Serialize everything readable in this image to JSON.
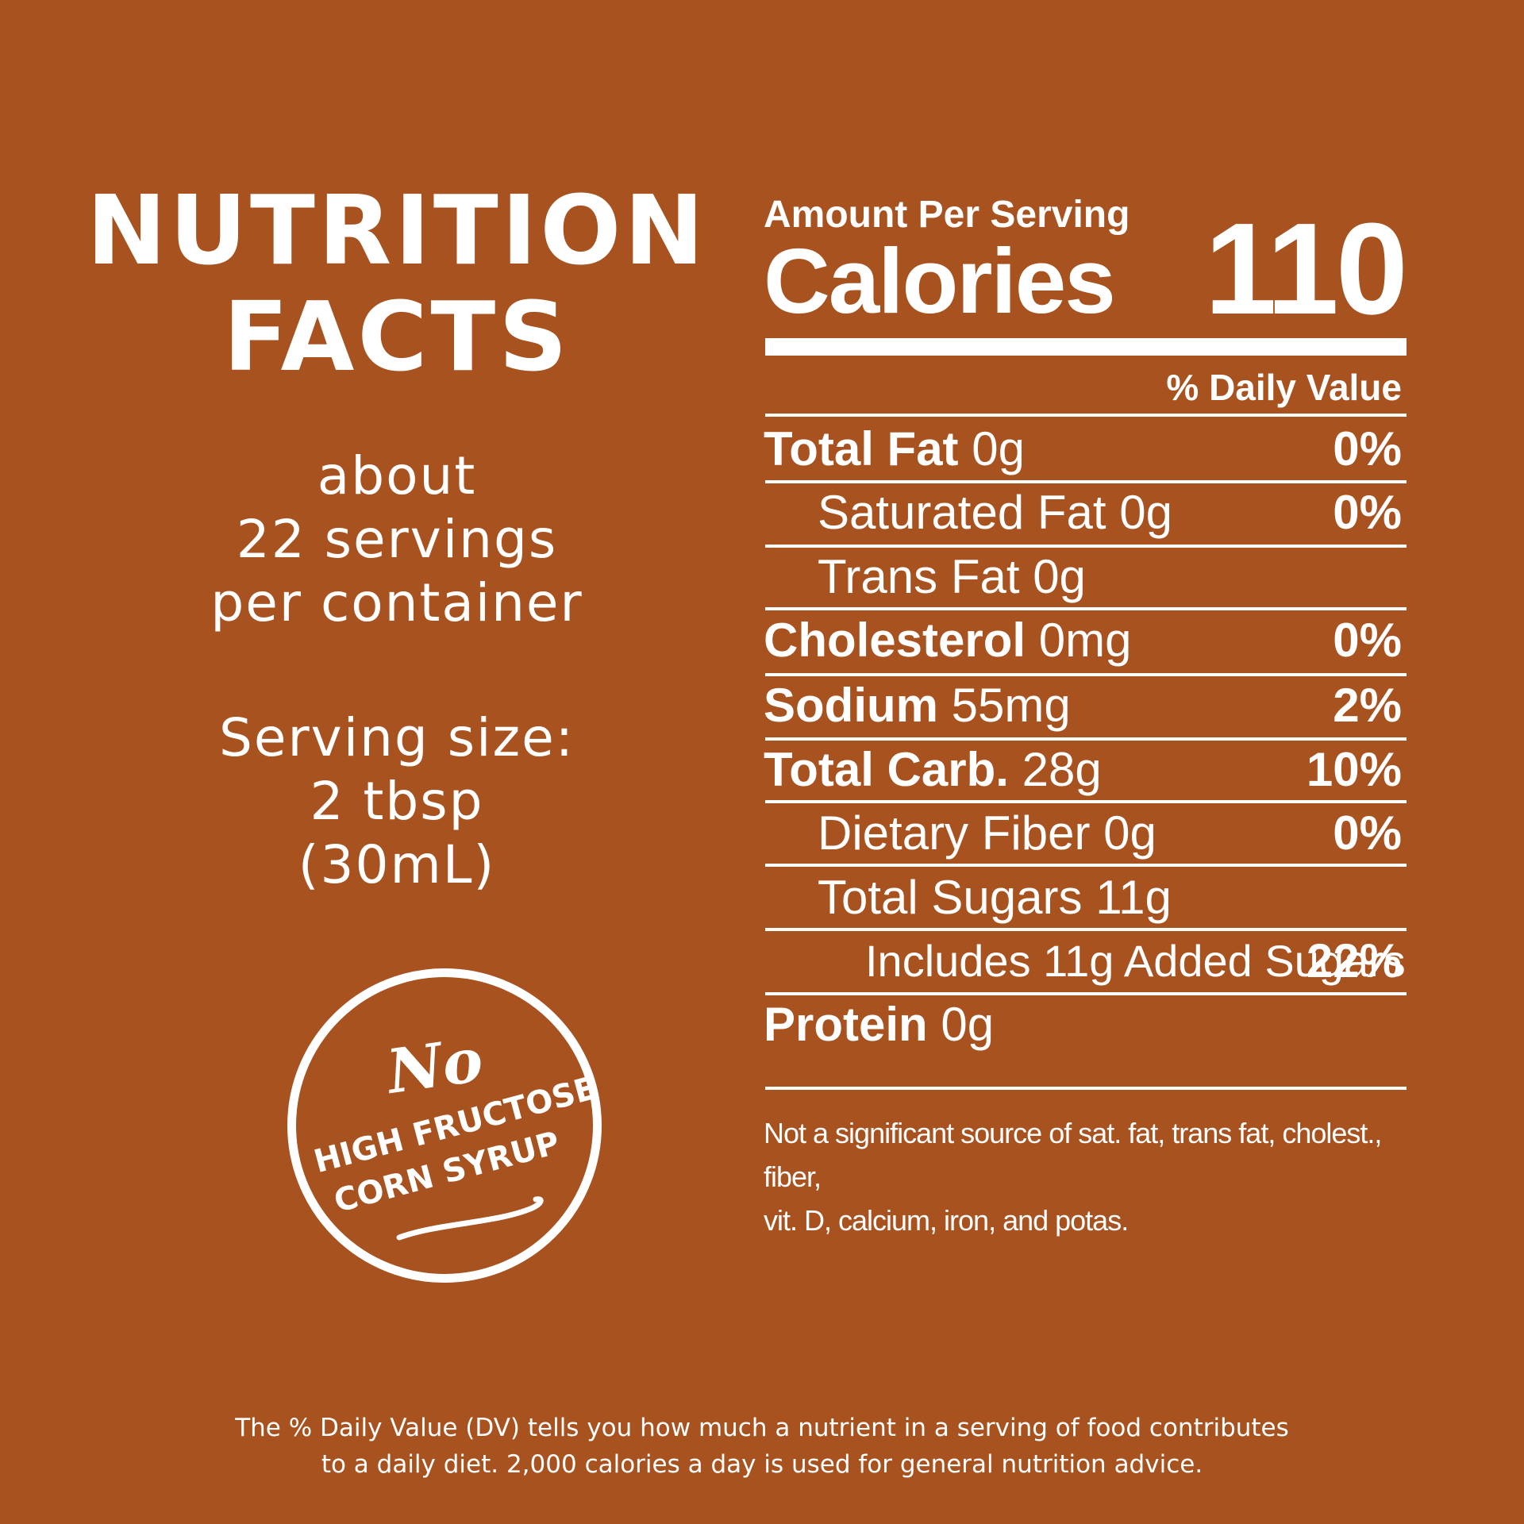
{
  "heading": {
    "line1": "NUTRITION",
    "line2": "FACTS"
  },
  "servings": {
    "line1": "about",
    "line2": "22 servings",
    "line3": "per container"
  },
  "serving_size": {
    "line1": "Serving size:",
    "line2": "2 tbsp",
    "line3": "(30mL)"
  },
  "badge": {
    "no": "No",
    "line1": "HIGH FRUCTOSE",
    "line2": "CORN SYRUP"
  },
  "panel": {
    "amount_per_serving": "Amount Per Serving",
    "calories_label": "Calories",
    "calories_value": "110",
    "daily_value_header": "% Daily Value",
    "rows": [
      {
        "name": "Total Fat",
        "amount": "0g",
        "dv": "0%"
      },
      {
        "name": "Saturated Fat",
        "amount": "0g",
        "dv": "0%"
      },
      {
        "name": "Trans Fat",
        "amount": "0g",
        "dv": ""
      },
      {
        "name": "Cholesterol",
        "amount": "0mg",
        "dv": "0%"
      },
      {
        "name": "Sodium",
        "amount": "55mg",
        "dv": "2%"
      },
      {
        "name": "Total Carb.",
        "amount": "28g",
        "dv": "10%"
      },
      {
        "name": "Dietary Fiber",
        "amount": "0g",
        "dv": "0%"
      },
      {
        "name": "Total Sugars",
        "amount": "11g",
        "dv": ""
      },
      {
        "name": "Includes 11g Added Sugars",
        "amount": "",
        "dv": "22%"
      },
      {
        "name": "Protein",
        "amount": "0g",
        "dv": ""
      }
    ],
    "footnote_line1": "Not a significant source of sat. fat, trans fat, cholest., fiber,",
    "footnote_line2": "vit. D, calcium, iron, and potas."
  },
  "disclaimer": {
    "line1": "The % Daily Value (DV) tells you how much a nutrient in a serving of food contributes",
    "line2": "to a daily diet. 2,000 calories a day is used for general nutrition advice."
  }
}
